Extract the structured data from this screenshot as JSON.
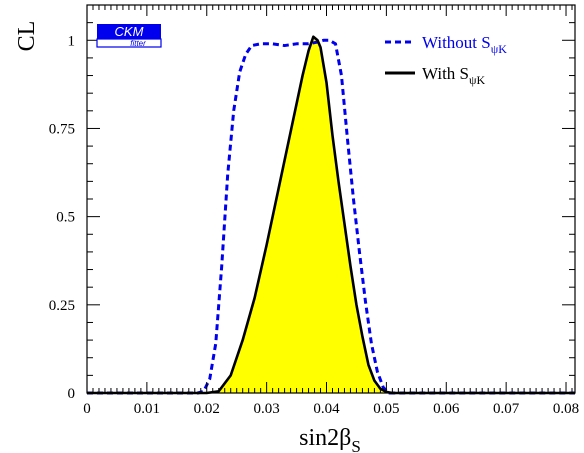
{
  "chart_data": {
    "type": "line",
    "xlabel": {
      "main": "sin2β",
      "sub": "S"
    },
    "ylabel": "CL",
    "xlim": [
      0,
      0.0815
    ],
    "ylim": [
      0,
      1.1
    ],
    "x_ticks": [
      "0",
      "0.01",
      "0.02",
      "0.03",
      "0.04",
      "0.05",
      "0.06",
      "0.07",
      "0.08"
    ],
    "x_tick_values": [
      0,
      0.01,
      0.02,
      0.03,
      0.04,
      0.05,
      0.06,
      0.07,
      0.08
    ],
    "y_ticks": [
      "0",
      "0.25",
      "0.5",
      "0.75",
      "1"
    ],
    "y_tick_values": [
      0,
      0.25,
      0.5,
      0.75,
      1
    ],
    "logo": {
      "top": "CKM",
      "bottom": "fitter",
      "color": "#0000ee"
    },
    "legend_position": "top-right",
    "series": [
      {
        "name": "Without S",
        "name_sub": "ψK",
        "style": "dashed",
        "color": "#0000ee",
        "fill": null,
        "x": [
          0,
          0.0185,
          0.0195,
          0.0205,
          0.0215,
          0.0225,
          0.0235,
          0.0245,
          0.0255,
          0.0265,
          0.0275,
          0.029,
          0.031,
          0.033,
          0.035,
          0.037,
          0.0385,
          0.0395,
          0.0405,
          0.0415,
          0.0425,
          0.0435,
          0.0445,
          0.0455,
          0.0465,
          0.0475,
          0.0485,
          0.0495,
          0.0505,
          0.052,
          0.0815
        ],
        "y": [
          0,
          0,
          0.005,
          0.04,
          0.14,
          0.36,
          0.62,
          0.8,
          0.91,
          0.96,
          0.985,
          0.99,
          0.99,
          0.985,
          0.99,
          0.99,
          0.995,
          1.0,
          1.0,
          0.99,
          0.9,
          0.72,
          0.55,
          0.4,
          0.26,
          0.14,
          0.06,
          0.015,
          0.0,
          0,
          0
        ]
      },
      {
        "name": "With S",
        "name_sub": "ψK",
        "style": "solid",
        "color": "#000000",
        "fill": "#ffff00",
        "x": [
          0,
          0.02,
          0.022,
          0.024,
          0.026,
          0.028,
          0.03,
          0.032,
          0.034,
          0.036,
          0.037,
          0.0378,
          0.0385,
          0.039,
          0.04,
          0.041,
          0.042,
          0.043,
          0.044,
          0.045,
          0.046,
          0.047,
          0.048,
          0.049,
          0.05,
          0.051,
          0.0815
        ],
        "y": [
          0,
          0,
          0.005,
          0.05,
          0.15,
          0.27,
          0.42,
          0.58,
          0.74,
          0.9,
          0.97,
          1.01,
          1.0,
          0.98,
          0.88,
          0.73,
          0.6,
          0.48,
          0.36,
          0.25,
          0.16,
          0.08,
          0.035,
          0.012,
          0.003,
          0,
          0
        ]
      }
    ]
  }
}
